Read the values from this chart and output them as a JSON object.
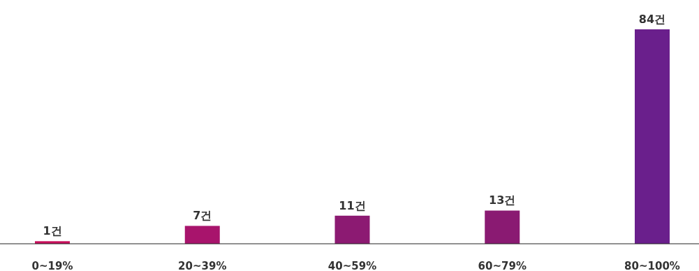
{
  "chart_data": {
    "type": "bar",
    "categories": [
      "0~19%",
      "20~39%",
      "40~59%",
      "60~79%",
      "80~100%"
    ],
    "values": [
      1,
      7,
      11,
      13,
      84
    ],
    "colors": [
      "#c80f5c",
      "#a8146c",
      "#8c1a72",
      "#8a1a72",
      "#6a1f8c"
    ],
    "value_labels": [
      "1건",
      "7건",
      "11건",
      "13건",
      "84건"
    ]
  }
}
